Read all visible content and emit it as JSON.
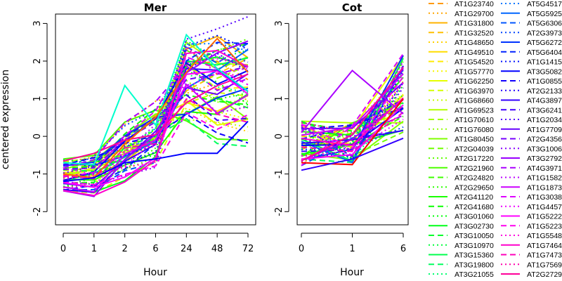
{
  "chart_data": [
    {
      "type": "line",
      "title": "Mer",
      "xlabel": "Hour",
      "ylabel": "centered expression",
      "x": [
        "0",
        "1",
        "2",
        "6",
        "24",
        "48",
        "72"
      ],
      "yticks": [
        "-2",
        "-1",
        "0",
        "1",
        "2",
        "3"
      ],
      "ylim": [
        -2.35,
        3.25
      ],
      "grid": false
    },
    {
      "type": "line",
      "title": "Cot",
      "xlabel": "Hour",
      "ylabel": "",
      "x": [
        "0",
        "1",
        "6"
      ],
      "yticks": [
        "-2",
        "-1",
        "0",
        "1",
        "2",
        "3"
      ],
      "ylim": [
        -2.35,
        3.25
      ],
      "grid": false
    }
  ],
  "legend": {
    "placement": "right",
    "entries": [
      {
        "name": "AT1G23740",
        "color": "#FF9900",
        "lty": "dashed"
      },
      {
        "name": "AT1G29700",
        "color": "#FFA500",
        "lty": "dotted"
      },
      {
        "name": "AT1G31800",
        "color": "#FFB300",
        "lty": "solid"
      },
      {
        "name": "AT1G32520",
        "color": "#FFC000",
        "lty": "dashed"
      },
      {
        "name": "AT1G48650",
        "color": "#FFD000",
        "lty": "dotted"
      },
      {
        "name": "AT1G49510",
        "color": "#FFDD00",
        "lty": "solid"
      },
      {
        "name": "AT1G54520",
        "color": "#FFEB00",
        "lty": "dashed"
      },
      {
        "name": "AT1G57770",
        "color": "#F7F700",
        "lty": "dotted"
      },
      {
        "name": "AT1G62250",
        "color": "#E6FF00",
        "lty": "solid"
      },
      {
        "name": "AT1G63970",
        "color": "#D4FF00",
        "lty": "dashed"
      },
      {
        "name": "AT1G68660",
        "color": "#C4FF00",
        "lty": "dotted"
      },
      {
        "name": "AT1G69523",
        "color": "#B3FF00",
        "lty": "solid"
      },
      {
        "name": "AT1G70610",
        "color": "#A3FF00",
        "lty": "dashed"
      },
      {
        "name": "AT1G76080",
        "color": "#91FF00",
        "lty": "dotted"
      },
      {
        "name": "AT1G80450",
        "color": "#80FF00",
        "lty": "solid"
      },
      {
        "name": "AT2G04039",
        "color": "#70FF00",
        "lty": "dashed"
      },
      {
        "name": "AT2G17220",
        "color": "#5EFF00",
        "lty": "dotted"
      },
      {
        "name": "AT2G21960",
        "color": "#4DFF00",
        "lty": "solid"
      },
      {
        "name": "AT2G24820",
        "color": "#3CFF00",
        "lty": "dashed"
      },
      {
        "name": "AT2G29650",
        "color": "#2BFF00",
        "lty": "dotted"
      },
      {
        "name": "AT2G41120",
        "color": "#1AFF00",
        "lty": "solid"
      },
      {
        "name": "AT2G41680",
        "color": "#0AFF00",
        "lty": "dashed"
      },
      {
        "name": "AT3G01060",
        "color": "#00FF0A",
        "lty": "dotted"
      },
      {
        "name": "AT3G02730",
        "color": "#00FF1A",
        "lty": "solid"
      },
      {
        "name": "AT3G10050",
        "color": "#00FF2B",
        "lty": "dashed"
      },
      {
        "name": "AT3G10970",
        "color": "#00FF3C",
        "lty": "dotted"
      },
      {
        "name": "AT3G15360",
        "color": "#00FF4D",
        "lty": "solid"
      },
      {
        "name": "AT3G19800",
        "color": "#00FF5E",
        "lty": "dashed"
      },
      {
        "name": "AT3G21055",
        "color": "#00FF70",
        "lty": "dotted"
      },
      {
        "name": "AT5G4517",
        "color": "#0077FF",
        "lty": "dotted"
      },
      {
        "name": "AT5G5925",
        "color": "#0066FF",
        "lty": "solid"
      },
      {
        "name": "AT5G6306",
        "color": "#0055FF",
        "lty": "dashed"
      },
      {
        "name": "AT2G3973",
        "color": "#0044FF",
        "lty": "dotted"
      },
      {
        "name": "AT5G6272",
        "color": "#0033FF",
        "lty": "solid"
      },
      {
        "name": "AT5G6404",
        "color": "#0022FF",
        "lty": "dashed"
      },
      {
        "name": "AT1G1415",
        "color": "#0011FF",
        "lty": "dotted"
      },
      {
        "name": "AT3G5082",
        "color": "#0000FF",
        "lty": "solid"
      },
      {
        "name": "AT1G0855",
        "color": "#1100FF",
        "lty": "dashed"
      },
      {
        "name": "AT2G2133",
        "color": "#2200FF",
        "lty": "dotted"
      },
      {
        "name": "AT4G3897",
        "color": "#3300FF",
        "lty": "solid"
      },
      {
        "name": "AT3G6241",
        "color": "#4400FF",
        "lty": "dashed"
      },
      {
        "name": "AT1G2034",
        "color": "#5500FF",
        "lty": "dotted"
      },
      {
        "name": "AT1G7709",
        "color": "#6600FF",
        "lty": "solid"
      },
      {
        "name": "AT2G4356",
        "color": "#7700FF",
        "lty": "dashed"
      },
      {
        "name": "AT3G1006",
        "color": "#8800FF",
        "lty": "dotted"
      },
      {
        "name": "AT3G2792",
        "color": "#9900FF",
        "lty": "solid"
      },
      {
        "name": "AT4G3971",
        "color": "#AA00FF",
        "lty": "dashed"
      },
      {
        "name": "AT1G1582",
        "color": "#BB00FF",
        "lty": "dotted"
      },
      {
        "name": "AT1G1873",
        "color": "#CC00FF",
        "lty": "solid"
      },
      {
        "name": "AT1G3038",
        "color": "#DD00FF",
        "lty": "dashed"
      },
      {
        "name": "AT1G4457",
        "color": "#EE00FF",
        "lty": "dotted"
      },
      {
        "name": "AT1G5222",
        "color": "#FF00FF",
        "lty": "solid"
      },
      {
        "name": "AT1G5223",
        "color": "#FF00EE",
        "lty": "dashed"
      },
      {
        "name": "AT1G5548",
        "color": "#FF00DD",
        "lty": "dotted"
      },
      {
        "name": "AT1G7464",
        "color": "#FF00CC",
        "lty": "solid"
      },
      {
        "name": "AT1G7473",
        "color": "#FF00BB",
        "lty": "dashed"
      },
      {
        "name": "AT1G7569",
        "color": "#FF00AA",
        "lty": "dotted"
      },
      {
        "name": "AT2G2729",
        "color": "#FF0099",
        "lty": "solid"
      }
    ]
  },
  "notable_series": {
    "mer_cyan_peak": {
      "color": "#00FFCC",
      "values": [
        -0.7,
        -0.75,
        1.35,
        0.3,
        2.7,
        1.8,
        1.2
      ]
    },
    "mer_orange_peak": {
      "color": "#FF6600",
      "values": [
        -1.0,
        -1.1,
        -0.2,
        0.5,
        1.7,
        2.6,
        1.7
      ]
    },
    "mer_blue_flat": {
      "color": "#0000FF",
      "values": [
        -1.2,
        -1.1,
        -0.7,
        -0.6,
        -0.45,
        -0.45,
        0.4
      ]
    },
    "cot_purple_peak": {
      "color": "#AA00FF",
      "values": [
        0.1,
        1.75,
        0.6
      ]
    },
    "cot_red_low": {
      "color": "#FF0000",
      "values": [
        -0.7,
        -0.75,
        1.0
      ]
    },
    "cot_blue_low": {
      "color": "#3300FF",
      "values": [
        -0.9,
        -0.6,
        -0.05
      ]
    }
  }
}
